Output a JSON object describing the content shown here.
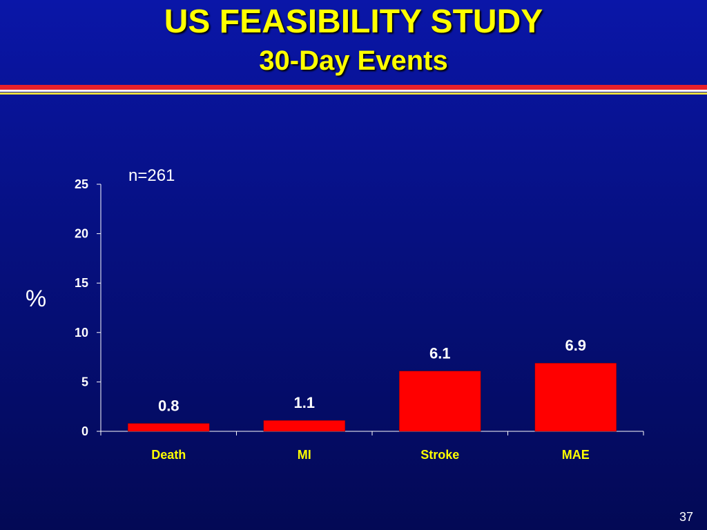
{
  "slide": {
    "title": "US FEASIBILITY STUDY",
    "subtitle": "30-Day Events",
    "page_number": "37"
  },
  "colors": {
    "bar": "#ff0000",
    "title": "#ffff00",
    "text": "#ffffff"
  },
  "chart_data": {
    "type": "bar",
    "categories": [
      "Death",
      "MI",
      "Stroke",
      "MAE"
    ],
    "values": [
      0.8,
      1.1,
      6.1,
      6.9
    ],
    "data_labels": [
      "0.8",
      "1.1",
      "6.1",
      "6.9"
    ],
    "title": "",
    "annotation": "n=261",
    "ylabel": "%",
    "xlabel": "",
    "ylim": [
      0,
      25
    ],
    "yticks": [
      0,
      5,
      10,
      15,
      20,
      25
    ],
    "grid": false,
    "legend": "none"
  }
}
